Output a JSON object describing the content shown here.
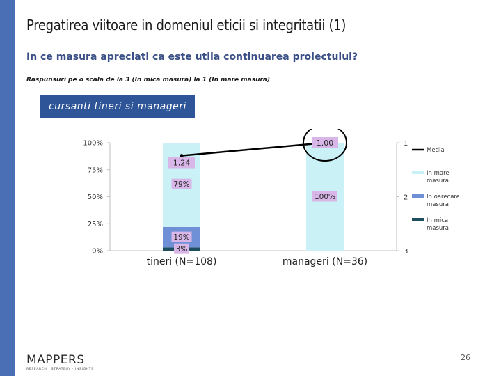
{
  "slide": {
    "title": "Pregatirea viitoare in domeniul eticii si integritatii (1)",
    "question": "In ce masura apreciati ca este utila continuarea proiectului?",
    "scale_note": "Raspunsuri pe o scala de la 3 (In mica masura) la 1 (In mare masura)",
    "segment_label": "cursanti tineri si manageri",
    "page_number": "26"
  },
  "logo": {
    "name": "MAPPERS",
    "tagline": "RESEARCH  ·  STRATEGY  ·  INSIGHTS"
  },
  "chart_data": {
    "type": "bar",
    "stacked": true,
    "categories": [
      "tineri (N=108)",
      "manageri (N=36)"
    ],
    "y_axis_left": {
      "ticks": [
        "0%",
        "25%",
        "50%",
        "75%",
        "100%"
      ],
      "range": [
        0,
        100
      ]
    },
    "y_axis_right": {
      "ticks": [
        "1",
        "2",
        "3"
      ],
      "range": [
        1,
        3
      ],
      "inverted": true
    },
    "series": [
      {
        "name": "In mica masura",
        "values": [
          3,
          0
        ],
        "labels": [
          "3%",
          ""
        ],
        "color": "#1f4e5f"
      },
      {
        "name": "In oarecare masura",
        "values": [
          19,
          0
        ],
        "labels": [
          "19%",
          ""
        ],
        "color": "#6f8fd6"
      },
      {
        "name": "In mare masura",
        "values": [
          79,
          100
        ],
        "labels": [
          "79%",
          "100%"
        ],
        "color": "#c9f1f6"
      }
    ],
    "line_series": {
      "name": "Media",
      "values": [
        1.24,
        1.0
      ],
      "labels": [
        "1.24",
        "1.00"
      ],
      "color": "#000000"
    },
    "data_label_color": "#d8b7e8",
    "highlight": {
      "category": "manageri (N=36)",
      "color": "#000000"
    },
    "legend": {
      "position": "right",
      "entries": [
        "Media",
        "In mare masura",
        "In oarecare masura",
        "In mica masura"
      ]
    },
    "grid": false
  }
}
